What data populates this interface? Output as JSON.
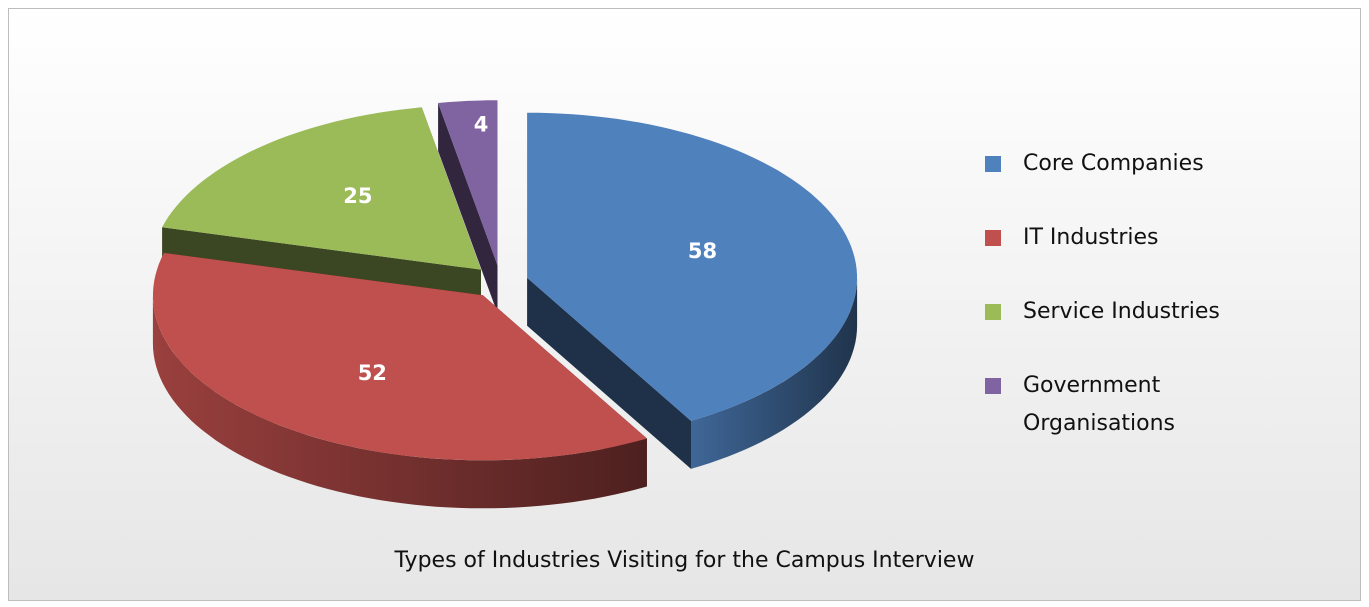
{
  "chart_data": {
    "type": "pie",
    "title": "Types of Industries Visiting for the Campus Interview",
    "categories": [
      "Core Companies",
      "IT Industries",
      "Service Industries",
      "Government Organisations"
    ],
    "values": [
      58,
      52,
      25,
      4
    ],
    "colors": [
      "#4f81bd",
      "#c0504d",
      "#9bbb59",
      "#8064a2"
    ],
    "legend": "right"
  }
}
